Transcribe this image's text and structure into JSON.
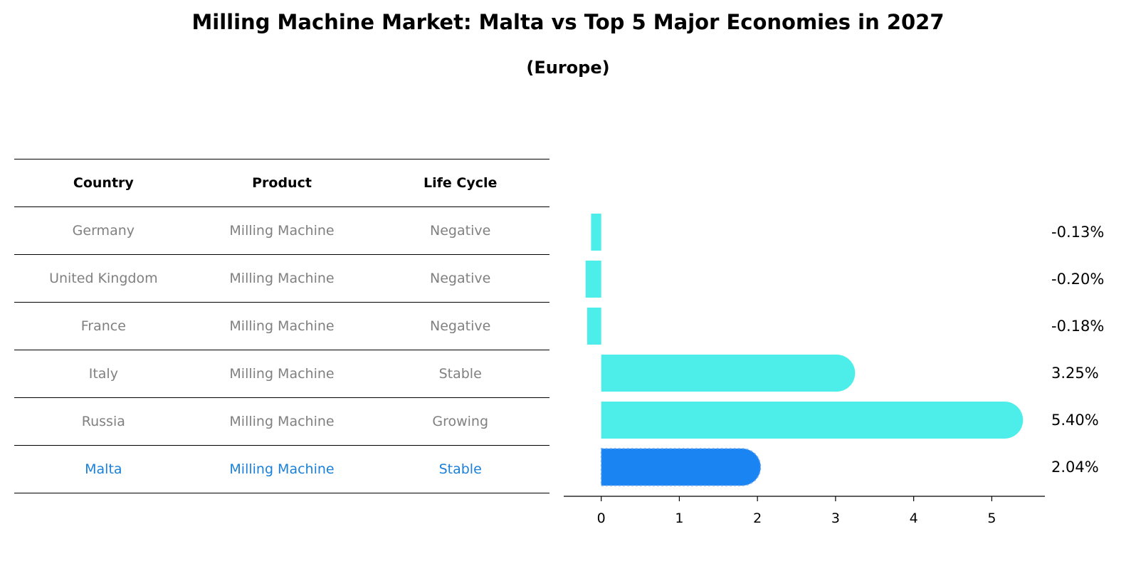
{
  "title": "Milling Machine Market: Malta vs Top 5 Major Economies in 2027",
  "subtitle": "(Europe)",
  "table": {
    "headers": [
      "Country",
      "Product",
      "Life Cycle"
    ],
    "rows": [
      {
        "country": "Germany",
        "product": "Milling Machine",
        "life_cycle": "Negative"
      },
      {
        "country": "United Kingdom",
        "product": "Milling Machine",
        "life_cycle": "Negative"
      },
      {
        "country": "France",
        "product": "Milling Machine",
        "life_cycle": "Negative"
      },
      {
        "country": "Italy",
        "product": "Milling Machine",
        "life_cycle": "Stable"
      },
      {
        "country": "Russia",
        "product": "Milling Machine",
        "life_cycle": "Growing"
      },
      {
        "country": "Malta",
        "product": "Milling Machine",
        "life_cycle": "Stable"
      }
    ]
  },
  "colors": {
    "bar": "#4deeea",
    "highlight_bar": "#1a84f2",
    "highlight_text": "#1a80d9",
    "muted_text": "#808080"
  },
  "chart_data": {
    "type": "bar",
    "orientation": "horizontal",
    "categories": [
      "Germany",
      "United Kingdom",
      "France",
      "Italy",
      "Russia",
      "Malta"
    ],
    "values": [
      -0.13,
      -0.2,
      -0.18,
      3.25,
      5.4,
      2.04
    ],
    "value_labels": [
      "-0.13%",
      "-0.20%",
      "-0.18%",
      "3.25%",
      "5.40%",
      "2.04%"
    ],
    "highlight_index": 5,
    "xlim": [
      -0.48,
      5.68
    ],
    "xticks": [
      0,
      1,
      2,
      3,
      4,
      5
    ],
    "xlabel": "",
    "ylabel": ""
  }
}
